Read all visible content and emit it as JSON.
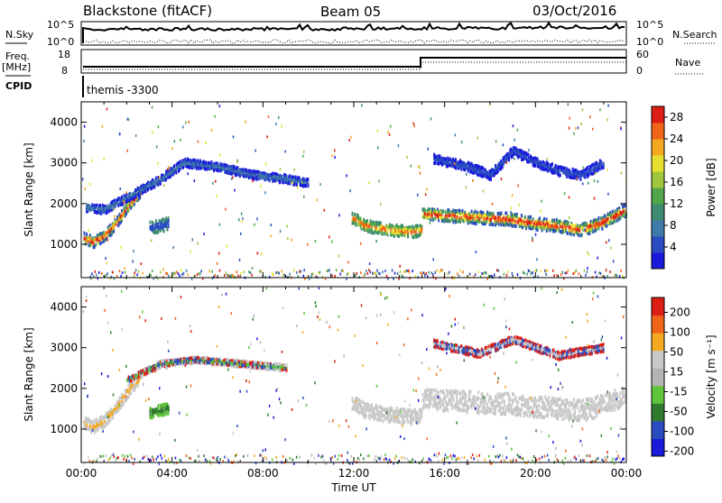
{
  "header": {
    "station": "Blackstone (fitACF)",
    "beam": "Beam 05",
    "date": "03/Oct/2016"
  },
  "side_labels": {
    "nsky": "N.Sky",
    "nsearch": "N.Search",
    "freq": "Freq.",
    "freq_unit": "[MHz]",
    "nave": "Nave",
    "cpid": "CPID",
    "cpid_value": "themis -3300",
    "nsky_top": "10^5",
    "nsky_bot": "10^0",
    "nsearch_top": "10^5",
    "nsearch_bot": "10^0",
    "freq_top": "18",
    "freq_bot": "8",
    "nave_top": "60",
    "nave_bot": "0"
  },
  "chart_data": [
    {
      "type": "heatmap",
      "name": "power-panel",
      "ylabel": "Slant Range [km]",
      "yticks": [
        1000,
        2000,
        3000,
        4000
      ],
      "ylim": [
        180,
        4500
      ],
      "xlim": [
        0,
        24
      ],
      "colorbar": {
        "label": "Power [dB]",
        "ticks": [
          "4",
          "8",
          "12",
          "16",
          "20",
          "24",
          "28"
        ],
        "colors": [
          "#1a1adc",
          "#2a4cc0",
          "#3f7aa8",
          "#3e8c70",
          "#52a64a",
          "#9ec73c",
          "#e8e030",
          "#f6a820",
          "#f06418",
          "#dc1e14"
        ]
      },
      "bands": [
        {
          "points": [
            [
              0.1,
              1150
            ],
            [
              0.5,
              1050
            ],
            [
              1.0,
              1200
            ],
            [
              1.5,
              1500
            ],
            [
              2.0,
              1900
            ],
            [
              2.6,
              2300
            ]
          ],
          "width": 260,
          "colors": [
            "#2a4cc0",
            "#3e8c70",
            "#9ec73c",
            "#f6a820",
            "#dc1e14"
          ]
        },
        {
          "points": [
            [
              11.9,
              1650
            ],
            [
              12.5,
              1450
            ],
            [
              13.5,
              1350
            ],
            [
              14.5,
              1300
            ],
            [
              15.0,
              1350
            ]
          ],
          "width": 280,
          "colors": [
            "#3e8c70",
            "#52a64a",
            "#e8e030",
            "#f06418"
          ]
        },
        {
          "points": [
            [
              15.0,
              1750
            ],
            [
              16.0,
              1700
            ],
            [
              17.5,
              1650
            ],
            [
              19.0,
              1600
            ],
            [
              20.0,
              1500
            ],
            [
              21.0,
              1450
            ],
            [
              22.0,
              1350
            ],
            [
              23.0,
              1550
            ],
            [
              24.0,
              1850
            ]
          ],
          "width": 300,
          "colors": [
            "#2a4cc0",
            "#3e8c70",
            "#52a64a",
            "#e8e030",
            "#f06418",
            "#dc1e14"
          ]
        },
        {
          "points": [
            [
              0.2,
              1900
            ],
            [
              1.0,
              1850
            ],
            [
              2.5,
              2300
            ],
            [
              3.5,
              2600
            ],
            [
              4.5,
              3000
            ],
            [
              6.0,
              2900
            ],
            [
              7.5,
              2700
            ],
            [
              9.0,
              2600
            ],
            [
              10.0,
              2500
            ]
          ],
          "width": 200,
          "colors": [
            "#1a1adc",
            "#2a4cc0",
            "#3f7aa8"
          ]
        },
        {
          "points": [
            [
              15.5,
              3100
            ],
            [
              17.0,
              2900
            ],
            [
              18.0,
              2700
            ],
            [
              19.0,
              3300
            ],
            [
              20.0,
              3000
            ],
            [
              21.0,
              2800
            ],
            [
              22.0,
              2700
            ],
            [
              23.0,
              3000
            ]
          ],
          "width": 220,
          "colors": [
            "#1a1adc",
            "#2a4cc0"
          ]
        },
        {
          "points": [
            [
              3.0,
              1400
            ],
            [
              3.8,
              1500
            ]
          ],
          "width": 300,
          "colors": [
            "#3e8c70",
            "#2a4cc0"
          ]
        }
      ]
    },
    {
      "type": "heatmap",
      "name": "velocity-panel",
      "xlabel": "Time UT",
      "ylabel": "Slant Range [km]",
      "yticks": [
        1000,
        2000,
        3000,
        4000
      ],
      "ylim": [
        180,
        4500
      ],
      "xlim": [
        0,
        24
      ],
      "xticks": [
        "00:00",
        "04:00",
        "08:00",
        "12:00",
        "16:00",
        "20:00",
        "00:00"
      ],
      "colorbar": {
        "label": "Velocity [m s⁻¹]",
        "ticks": [
          "200",
          "100",
          "50",
          "15",
          "-15",
          "-50",
          "-100",
          "-200"
        ],
        "colors": [
          "#1a1adc",
          "#2a4cc0",
          "#2f7a2f",
          "#5ec43a",
          "#b4b4b4",
          "#c8c8c8",
          "#f6a820",
          "#f06418",
          "#dc1e14"
        ]
      },
      "bands": [
        {
          "points": [
            [
              0.1,
              1150
            ],
            [
              0.5,
              1050
            ],
            [
              1.0,
              1200
            ],
            [
              1.5,
              1500
            ],
            [
              2.0,
              1900
            ],
            [
              2.6,
              2300
            ]
          ],
          "width": 300,
          "colors": [
            "#c8c8c8",
            "#c8c8c8",
            "#f6a820"
          ]
        },
        {
          "points": [
            [
              11.9,
              1650
            ],
            [
              12.5,
              1450
            ],
            [
              13.5,
              1350
            ],
            [
              14.5,
              1300
            ],
            [
              15.0,
              1350
            ]
          ],
          "width": 360,
          "colors": [
            "#c8c8c8"
          ]
        },
        {
          "points": [
            [
              15.0,
              1750
            ],
            [
              16.0,
              1700
            ],
            [
              17.5,
              1650
            ],
            [
              19.0,
              1600
            ],
            [
              20.0,
              1550
            ],
            [
              21.0,
              1500
            ],
            [
              22.0,
              1450
            ],
            [
              23.0,
              1600
            ],
            [
              24.0,
              1850
            ]
          ],
          "width": 520,
          "colors": [
            "#c8c8c8"
          ]
        },
        {
          "points": [
            [
              2.0,
              2200
            ],
            [
              3.5,
              2600
            ],
            [
              5.0,
              2700
            ],
            [
              7.0,
              2600
            ],
            [
              9.0,
              2500
            ]
          ],
          "width": 160,
          "colors": [
            "#c8c8c8",
            "#dc1e14",
            "#2a4cc0",
            "#5ec43a"
          ]
        },
        {
          "points": [
            [
              15.5,
              3100
            ],
            [
              17.5,
              2850
            ],
            [
              19.0,
              3200
            ],
            [
              21.0,
              2800
            ],
            [
              23.0,
              3000
            ]
          ],
          "width": 180,
          "colors": [
            "#dc1e14",
            "#2a4cc0",
            "#c8c8c8"
          ]
        },
        {
          "points": [
            [
              3.0,
              1400
            ],
            [
              3.8,
              1500
            ]
          ],
          "width": 260,
          "colors": [
            "#5ec43a",
            "#2f7a2f"
          ]
        }
      ]
    }
  ]
}
